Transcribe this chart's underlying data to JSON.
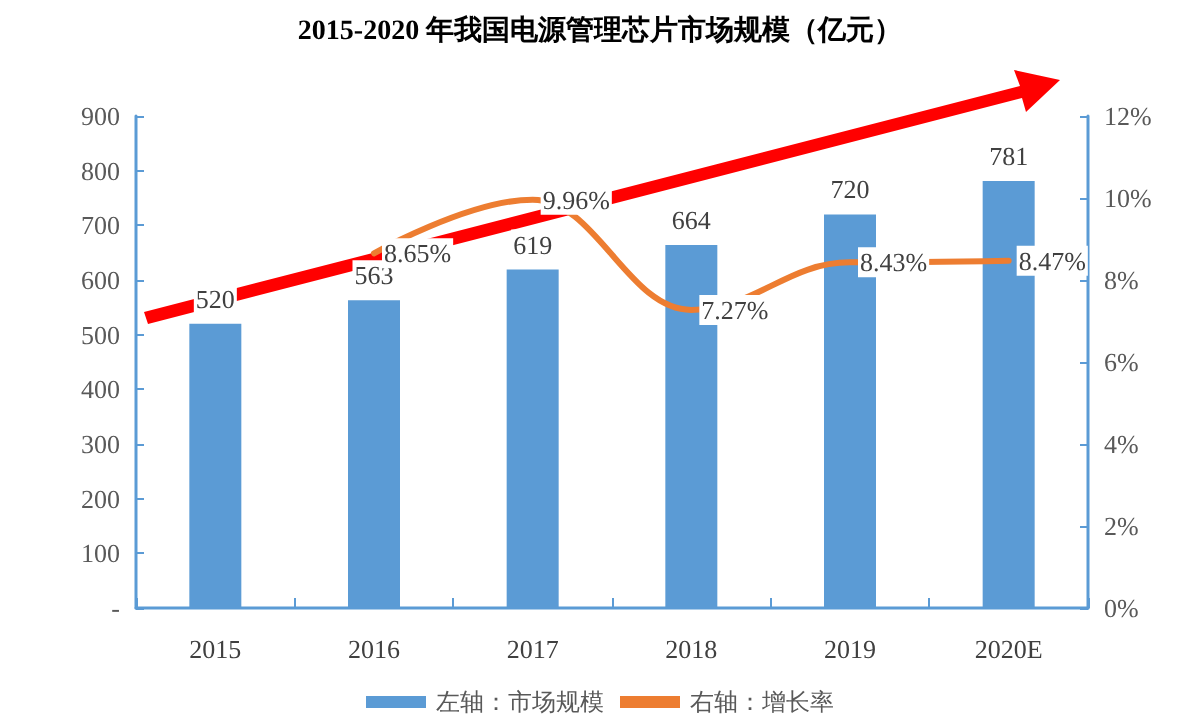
{
  "chart_data": {
    "type": "bar",
    "title": "2015-2020 年我国电源管理芯片市场规模（亿元）",
    "categories": [
      "2015",
      "2016",
      "2017",
      "2018",
      "2019",
      "2020E"
    ],
    "series": [
      {
        "name": "左轴：市场规模",
        "color": "#5b9bd5",
        "values": [
          520,
          563,
          619,
          664,
          720,
          781
        ],
        "value_labels": [
          "520",
          "563",
          "619",
          "664",
          "720",
          "781"
        ]
      },
      {
        "name": "右轴：增长率",
        "type": "line",
        "axis": "y2",
        "color": "#ed7d31",
        "values": [
          null,
          8.65,
          9.96,
          7.27,
          8.43,
          8.47
        ],
        "value_labels": [
          null,
          "8.65%",
          "9.96%",
          "7.27%",
          "8.43%",
          "8.47%"
        ]
      }
    ],
    "ylim": [
      0,
      900
    ],
    "yticks": [
      {
        "value": 0,
        "label": "-"
      },
      100,
      200,
      300,
      400,
      500,
      600,
      700,
      800,
      900
    ],
    "y2lim": [
      0,
      12
    ],
    "y2ticks": [
      {
        "value": 0,
        "label": "0%"
      },
      {
        "value": 2,
        "label": "2%"
      },
      {
        "value": 4,
        "label": "4%"
      },
      {
        "value": 6,
        "label": "6%"
      },
      {
        "value": 8,
        "label": "8%"
      },
      {
        "value": 10,
        "label": "10%"
      },
      {
        "value": 12,
        "label": "12%"
      }
    ],
    "legend": "bottom",
    "grid": false,
    "marker": "none"
  }
}
